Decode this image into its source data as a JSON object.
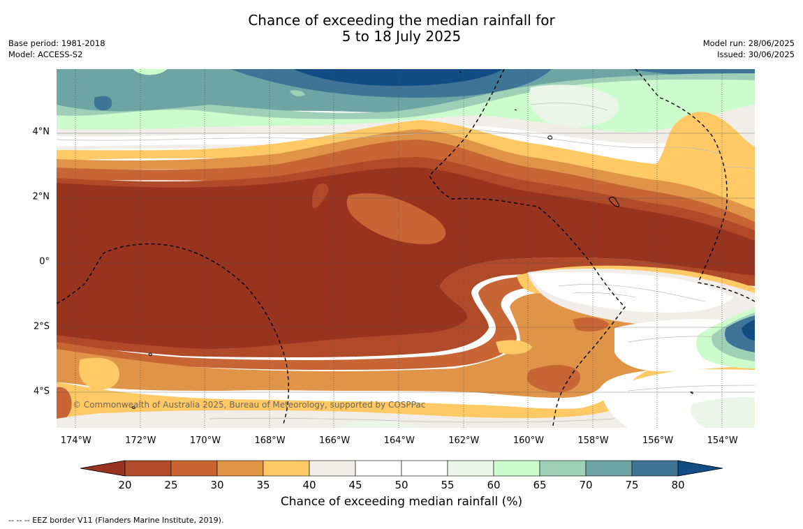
{
  "title": {
    "line1": "Chance of exceeding the median rainfall for",
    "line2": "5 to 18 July 2025"
  },
  "meta": {
    "base_period": "Base period: 1981-2018",
    "model": "Model: ACCESS-S2",
    "model_run": "Model run: 28/06/2025",
    "issued": "Issued: 30/06/2025"
  },
  "map": {
    "lon_range": [
      -174.6,
      -153.0
    ],
    "lat_range": [
      -5.15,
      5.9
    ],
    "lat_ticks": [
      {
        "value": 4,
        "label": "4°N"
      },
      {
        "value": 2,
        "label": "2°N"
      },
      {
        "value": 0,
        "label": "0°"
      },
      {
        "value": -2,
        "label": "2°S"
      },
      {
        "value": -4,
        "label": "4°S"
      }
    ],
    "lon_ticks": [
      {
        "value": -174,
        "label": "174°W"
      },
      {
        "value": -172,
        "label": "172°W"
      },
      {
        "value": -170,
        "label": "170°W"
      },
      {
        "value": -168,
        "label": "168°W"
      },
      {
        "value": -166,
        "label": "166°W"
      },
      {
        "value": -164,
        "label": "164°W"
      },
      {
        "value": -162,
        "label": "162°W"
      },
      {
        "value": -160,
        "label": "160°W"
      },
      {
        "value": -158,
        "label": "158°W"
      },
      {
        "value": -156,
        "label": "156°W"
      },
      {
        "value": -154,
        "label": "154°W"
      }
    ],
    "copyright": "© Commonwealth of Australia 2025, Bureau of Meteorology, supported by COSPPac"
  },
  "colorbar": {
    "levels": [
      20,
      25,
      30,
      35,
      40,
      45,
      50,
      55,
      60,
      65,
      70,
      75,
      80
    ],
    "colors": [
      "#983320",
      "#b04a28",
      "#c86535",
      "#e09448",
      "#ffc966",
      "#f1ede8",
      "#ffffff",
      "#ffffff",
      "#ebf6e8",
      "#ccfccc",
      "#9dd0b6",
      "#6fa4a4",
      "#3e7596",
      "#114c84"
    ],
    "label": "Chance of exceeding median rainfall (%)"
  },
  "footnote": "--  --  -- EEZ border V11 (Flanders Marine Institute, 2019)."
}
